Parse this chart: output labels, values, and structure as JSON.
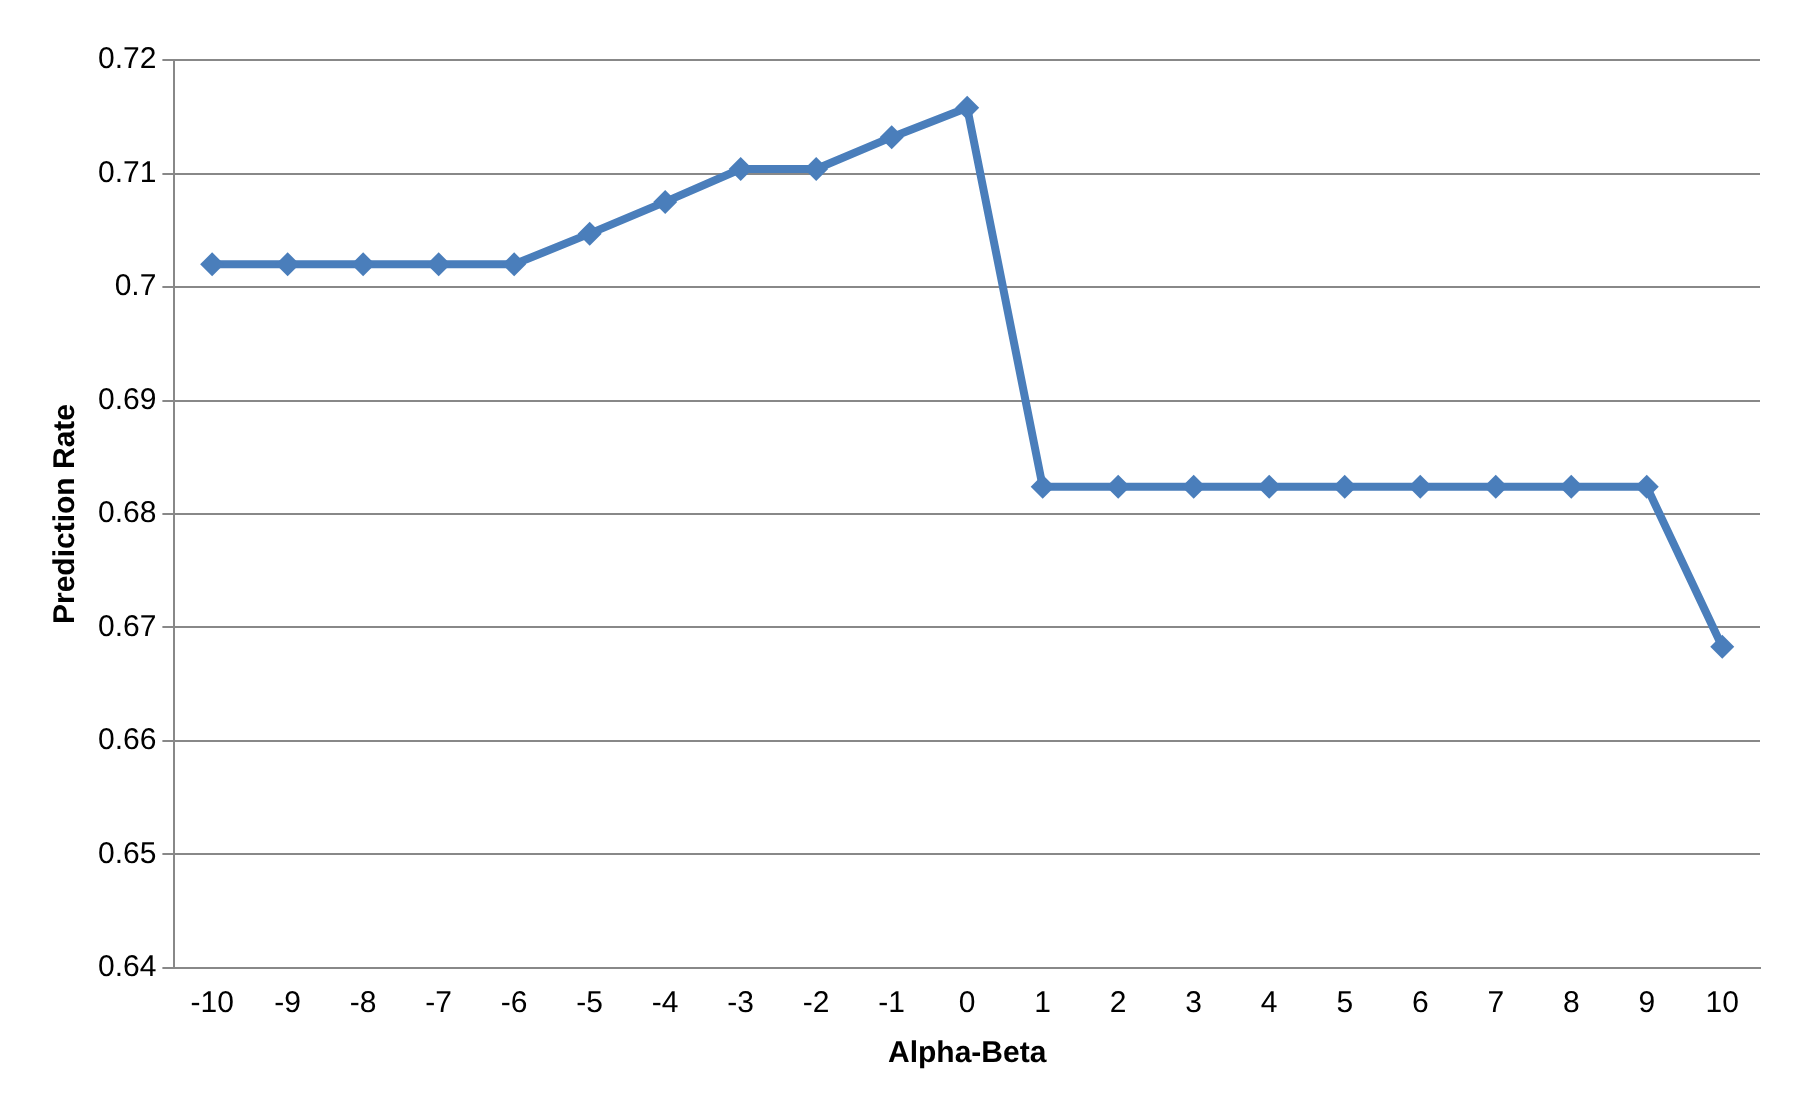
{
  "chart_data": {
    "type": "line",
    "xlabel": "Alpha-Beta",
    "ylabel": "Prediction Rate",
    "categories": [
      "-10",
      "-9",
      "-8",
      "-7",
      "-6",
      "-5",
      "-4",
      "-3",
      "-2",
      "-1",
      "0",
      "1",
      "2",
      "3",
      "4",
      "5",
      "6",
      "7",
      "8",
      "9",
      "10"
    ],
    "series": [
      {
        "color": "#4a7ebb",
        "values": [
          0.702,
          0.702,
          0.702,
          0.702,
          0.702,
          0.7047,
          0.7075,
          0.7104,
          0.7104,
          0.7132,
          0.7158,
          0.6824,
          0.6824,
          0.6824,
          0.6824,
          0.6824,
          0.6824,
          0.6824,
          0.6824,
          0.6824,
          0.6683
        ]
      }
    ],
    "ylim": [
      0.64,
      0.72
    ],
    "yticks": [
      0.64,
      0.65,
      0.66,
      0.67,
      0.68,
      0.69,
      0.7,
      0.71,
      0.72
    ],
    "grid": "y",
    "legend": false,
    "marker": "diamond",
    "line_style": "solid"
  }
}
